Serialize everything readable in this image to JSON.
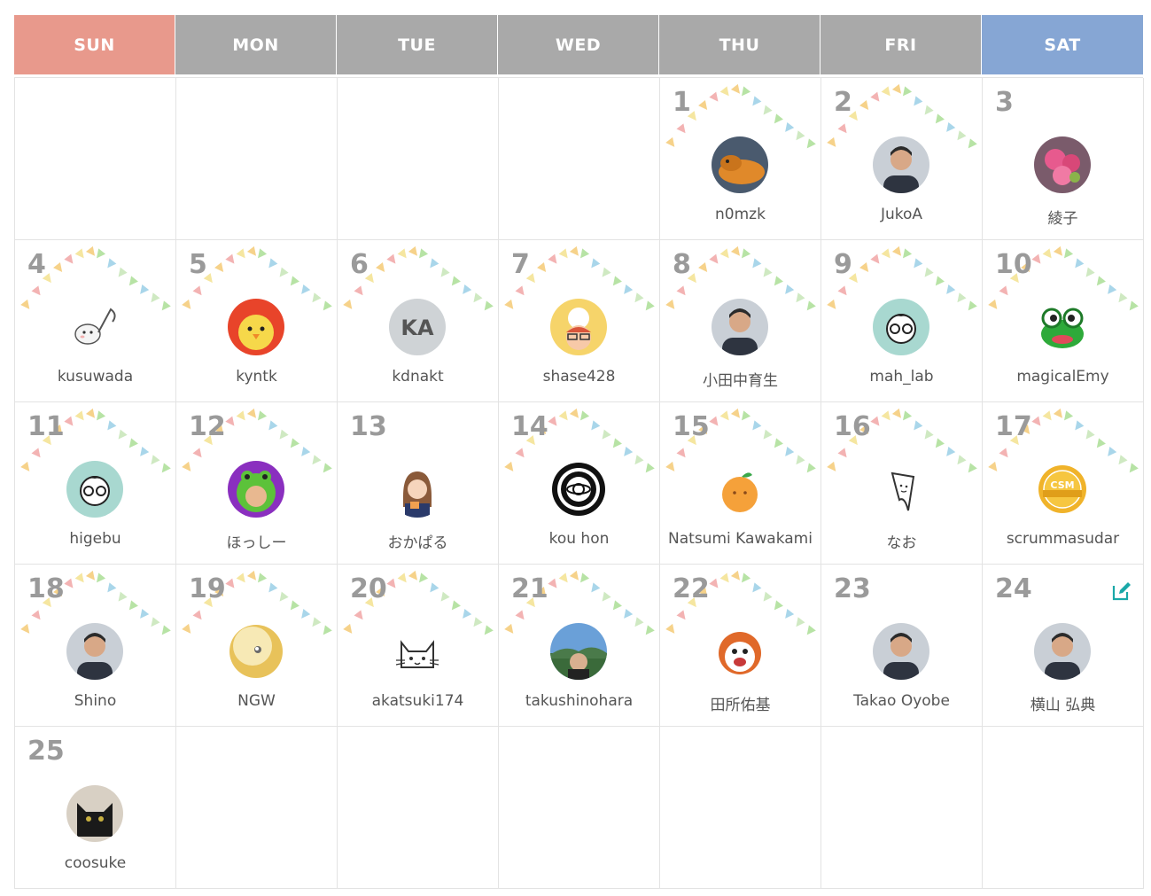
{
  "calendar": {
    "weekdays": [
      "SUN",
      "MON",
      "TUE",
      "WED",
      "THU",
      "FRI",
      "SAT"
    ],
    "colors": {
      "sunday_header": "#e8998c",
      "saturday_header": "#86a6d4",
      "weekday_header": "#a9a9a9",
      "day_number": "#9a9a9a",
      "edit_icon": "#1aa8a8"
    },
    "days": [
      {
        "day": "1",
        "user": "n0mzk",
        "avatar_icon": "lizard-avatar-icon"
      },
      {
        "day": "2",
        "user": "JukoA",
        "avatar_icon": "person-avatar-icon"
      },
      {
        "day": "3",
        "user": "綾子",
        "avatar_icon": "flower-avatar-icon"
      },
      {
        "day": "4",
        "user": "kusuwada",
        "avatar_icon": "music-note-avatar-icon"
      },
      {
        "day": "5",
        "user": "kyntk",
        "avatar_icon": "chick-avatar-icon"
      },
      {
        "day": "6",
        "user": "kdnakt",
        "avatar_icon": "initials-avatar-icon",
        "initials": "KA"
      },
      {
        "day": "7",
        "user": "shase428",
        "avatar_icon": "cartoon-avatar-icon"
      },
      {
        "day": "8",
        "user": "小田中育生",
        "avatar_icon": "person-avatar-icon"
      },
      {
        "day": "9",
        "user": "mah_lab",
        "avatar_icon": "glasses-avatar-icon"
      },
      {
        "day": "10",
        "user": "magicalEmy",
        "avatar_icon": "frog-avatar-icon"
      },
      {
        "day": "11",
        "user": "higebu",
        "avatar_icon": "glasses-avatar-icon"
      },
      {
        "day": "12",
        "user": "ほっしー",
        "avatar_icon": "frog-hood-avatar-icon"
      },
      {
        "day": "13",
        "user": "おかぱる",
        "avatar_icon": "girl-avatar-icon"
      },
      {
        "day": "14",
        "user": "kou hon",
        "avatar_icon": "crest-avatar-icon"
      },
      {
        "day": "15",
        "user": "Natsumi Kawakami",
        "avatar_icon": "orange-avatar-icon"
      },
      {
        "day": "16",
        "user": "なお",
        "avatar_icon": "sketch-avatar-icon"
      },
      {
        "day": "17",
        "user": "scrummasudar",
        "avatar_icon": "csm-badge-avatar-icon"
      },
      {
        "day": "18",
        "user": "Shino",
        "avatar_icon": "person-avatar-icon"
      },
      {
        "day": "19",
        "user": "NGW",
        "avatar_icon": "pearl-avatar-icon"
      },
      {
        "day": "20",
        "user": "akatsuki174",
        "avatar_icon": "cat-avatar-icon"
      },
      {
        "day": "21",
        "user": "takushinohara",
        "avatar_icon": "landscape-avatar-icon"
      },
      {
        "day": "22",
        "user": "田所佑基",
        "avatar_icon": "mascot-avatar-icon"
      },
      {
        "day": "23",
        "user": "Takao Oyobe",
        "avatar_icon": "person-avatar-icon"
      },
      {
        "day": "24",
        "user": "横山 弘典",
        "avatar_icon": "person-avatar-icon",
        "edit_icon": "edit-icon"
      },
      {
        "day": "25",
        "user": "coosuke",
        "avatar_icon": "black-cat-avatar-icon"
      }
    ],
    "badge_text": "CSM"
  }
}
